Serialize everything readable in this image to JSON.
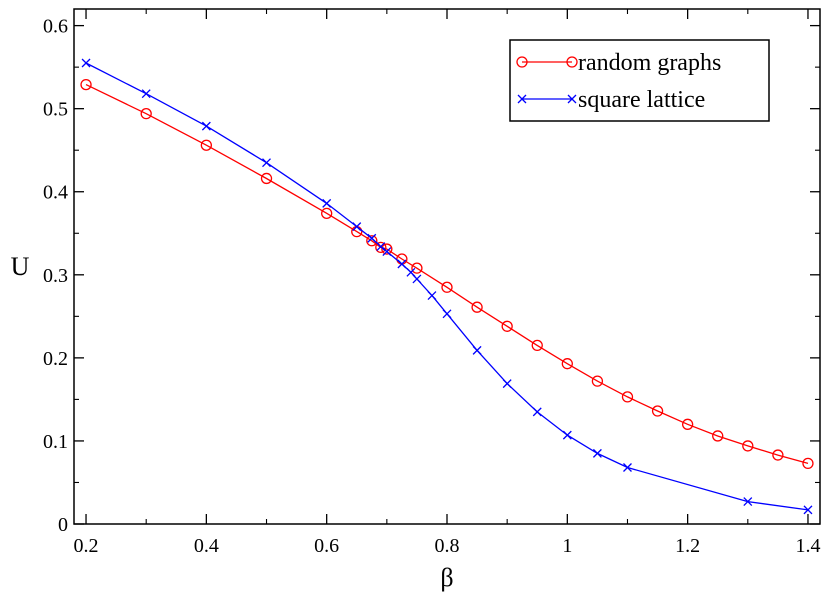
{
  "chart_data": {
    "type": "line",
    "title": "",
    "xlabel": "β",
    "ylabel": "U",
    "xlim": [
      0.18,
      1.42
    ],
    "ylim": [
      0,
      0.62
    ],
    "x_ticks": [
      0.2,
      0.4,
      0.6,
      0.8,
      1.0,
      1.2,
      1.4
    ],
    "x_tick_labels": [
      "0.2",
      "0.4",
      "0.6",
      "0.8",
      "1",
      "1.2",
      "1.4"
    ],
    "y_ticks": [
      0,
      0.1,
      0.2,
      0.3,
      0.4,
      0.5,
      0.6
    ],
    "y_tick_labels": [
      "0",
      "0.1",
      "0.2",
      "0.3",
      "0.4",
      "0.5",
      "0.6"
    ],
    "grid": false,
    "legend_position": "top-right",
    "series": [
      {
        "name": "random graphs",
        "color": "#ff0000",
        "marker": "circle",
        "x": [
          0.2,
          0.3,
          0.4,
          0.5,
          0.6,
          0.65,
          0.675,
          0.69,
          0.7,
          0.725,
          0.75,
          0.8,
          0.85,
          0.9,
          0.95,
          1.0,
          1.05,
          1.1,
          1.15,
          1.2,
          1.25,
          1.3,
          1.35,
          1.4
        ],
        "y": [
          0.529,
          0.494,
          0.456,
          0.416,
          0.374,
          0.352,
          0.341,
          0.333,
          0.331,
          0.319,
          0.308,
          0.285,
          0.261,
          0.238,
          0.215,
          0.193,
          0.172,
          0.153,
          0.136,
          0.12,
          0.106,
          0.094,
          0.083,
          0.073
        ]
      },
      {
        "name": "square lattice",
        "color": "#0000ff",
        "marker": "x",
        "x": [
          0.2,
          0.3,
          0.4,
          0.5,
          0.6,
          0.65,
          0.675,
          0.69,
          0.7,
          0.725,
          0.74,
          0.75,
          0.775,
          0.8,
          0.85,
          0.9,
          0.95,
          1.0,
          1.05,
          1.1,
          1.3,
          1.4
        ],
        "y": [
          0.555,
          0.518,
          0.479,
          0.435,
          0.386,
          0.358,
          0.344,
          0.334,
          0.328,
          0.313,
          0.303,
          0.295,
          0.275,
          0.253,
          0.209,
          0.169,
          0.135,
          0.107,
          0.085,
          0.068,
          0.027,
          0.017
        ]
      }
    ]
  }
}
